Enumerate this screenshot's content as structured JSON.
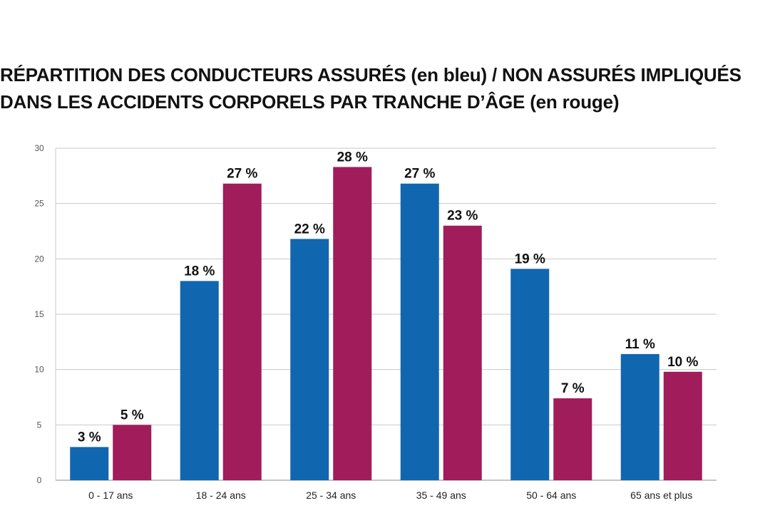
{
  "chart_data": {
    "type": "bar",
    "title_lines": [
      "RÉPARTITION DES CONDUCTEURS ASSURÉS (en bleu) / NON ASSURÉS IMPLIQUÉS",
      "DANS LES ACCIDENTS CORPORELS PAR TRANCHE D’ÂGE (en rouge)"
    ],
    "categories": [
      "0 - 17 ans",
      "18 - 24 ans",
      "25 - 34 ans",
      "35 - 49 ans",
      "50 - 64 ans",
      "65 ans et plus"
    ],
    "series": [
      {
        "values": [
          3,
          18,
          21.8,
          26.8,
          19.1,
          11.4
        ],
        "labels": [
          "3 %",
          "18 %",
          "22 %",
          "27 %",
          "19 %",
          "11 %"
        ],
        "color": "#1166b0"
      },
      {
        "values": [
          5,
          26.8,
          28.3,
          23,
          7.4,
          9.8
        ],
        "labels": [
          "5 %",
          "27 %",
          "28 %",
          "23 %",
          "7 %",
          "10 %"
        ],
        "color": "#a01c5a"
      }
    ],
    "ylim": [
      0,
      30
    ],
    "yticks": [
      "0",
      "5",
      "10",
      "15",
      "20",
      "25",
      "30"
    ],
    "grid": true,
    "legend": "none"
  }
}
